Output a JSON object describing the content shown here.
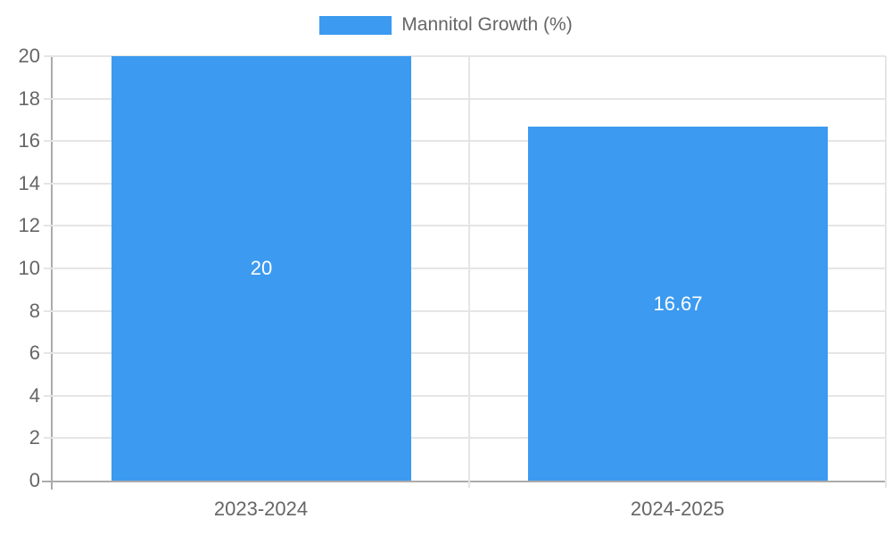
{
  "chart_data": {
    "type": "bar",
    "title": "Mannitol Growth (%)",
    "categories": [
      "2023-2024",
      "2024-2025"
    ],
    "series": [
      {
        "name": "Mannitol Growth (%)",
        "values": [
          20,
          16.67
        ],
        "data_labels": [
          "20",
          "16.67"
        ]
      }
    ],
    "xlabel": "",
    "ylabel": "",
    "ylim": [
      0,
      20
    ],
    "yticks": [
      0,
      2,
      4,
      6,
      8,
      10,
      12,
      14,
      16,
      18,
      20
    ],
    "grid": true,
    "legend_position": "top",
    "bar_width_fraction": 0.72,
    "colors": {
      "bar": "#3c9af0",
      "grid": "#e5e5e5",
      "axis_border": "#ababab",
      "tick_label": "#666666",
      "data_label": "#ffffff",
      "background": "#ffffff"
    }
  }
}
